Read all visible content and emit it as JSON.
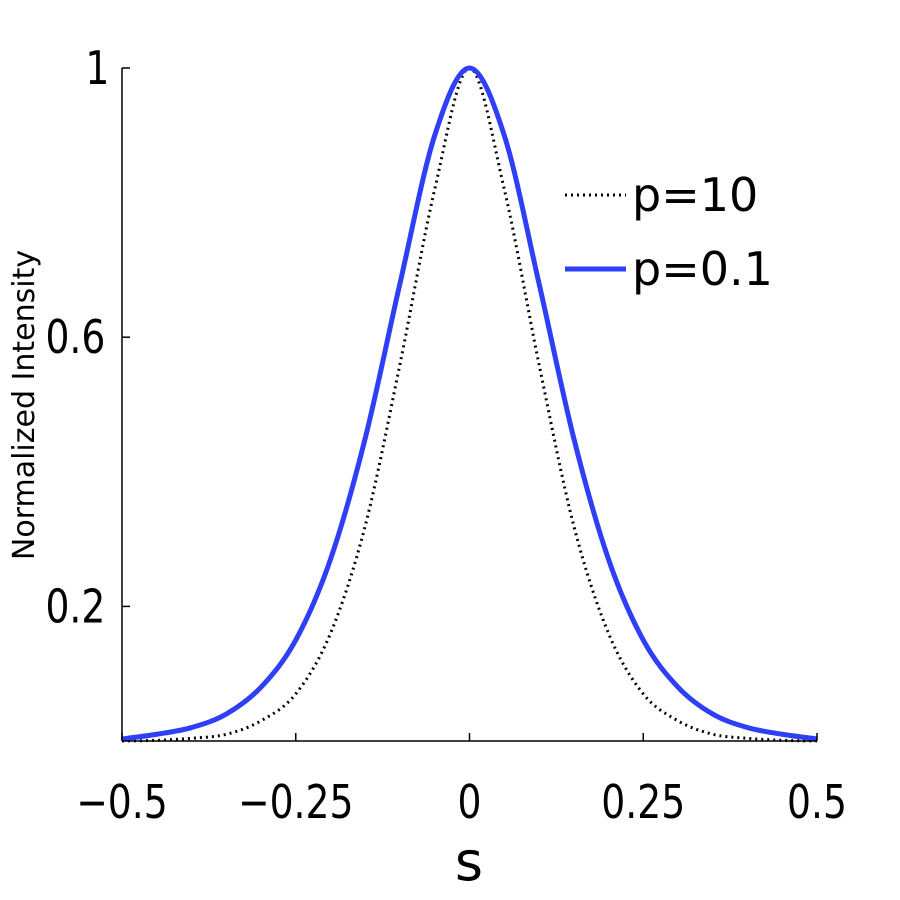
{
  "chart_data": {
    "type": "line",
    "xlabel": "s",
    "ylabel": "Normalized Intensity",
    "xlim": [
      -0.5,
      0.5
    ],
    "ylim": [
      0,
      1
    ],
    "x_ticks": [
      -0.5,
      -0.25,
      0,
      0.25,
      0.5
    ],
    "x_tick_labels": [
      "−0.5",
      "−0.25",
      "0",
      "0.25",
      "0.5"
    ],
    "y_ticks": [
      0.2,
      0.6,
      1
    ],
    "y_tick_labels": [
      "0.2",
      "0.6",
      "1"
    ],
    "grid": false,
    "legend_position": "top-right",
    "x": [
      -0.5,
      -0.45,
      -0.4,
      -0.35,
      -0.3,
      -0.25,
      -0.2,
      -0.15,
      -0.1,
      -0.05,
      0,
      0.05,
      0.1,
      0.15,
      0.2,
      0.25,
      0.3,
      0.35,
      0.4,
      0.45,
      0.5
    ],
    "series": [
      {
        "name": "p=10",
        "style": "dotted",
        "color": "#000000",
        "values": [
          0.0,
          0.001,
          0.004,
          0.01,
          0.03,
          0.07,
          0.16,
          0.32,
          0.56,
          0.82,
          1.0,
          0.82,
          0.56,
          0.32,
          0.16,
          0.07,
          0.03,
          0.01,
          0.004,
          0.001,
          0.0
        ]
      },
      {
        "name": "p=0.1",
        "style": "solid",
        "color": "#2e3ff5",
        "values": [
          0.003,
          0.01,
          0.02,
          0.04,
          0.08,
          0.15,
          0.27,
          0.45,
          0.68,
          0.9,
          1.0,
          0.9,
          0.68,
          0.45,
          0.27,
          0.15,
          0.08,
          0.04,
          0.02,
          0.01,
          0.003
        ]
      }
    ]
  }
}
